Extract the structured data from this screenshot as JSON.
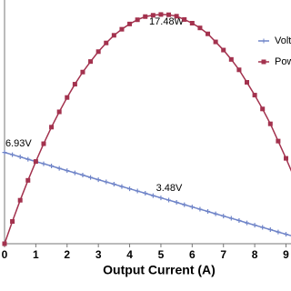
{
  "chart_data": {
    "type": "line",
    "x_label": "Output Current (A)",
    "x": [
      0,
      0.25,
      0.5,
      0.75,
      1,
      1.25,
      1.5,
      1.75,
      2,
      2.25,
      2.5,
      2.75,
      3,
      3.25,
      3.5,
      3.75,
      4,
      4.25,
      4.5,
      4.75,
      5,
      5.25,
      5.5,
      5.75,
      6,
      6.25,
      6.5,
      6.75,
      7,
      7.25,
      7.5,
      7.75,
      8,
      8.25,
      8.5,
      8.75,
      9,
      9.25
    ],
    "series": [
      {
        "name": "Voltage",
        "color": "#6f84c8",
        "values": [
          6.93,
          6.76,
          6.59,
          6.41,
          6.24,
          6.07,
          5.9,
          5.72,
          5.55,
          5.38,
          5.21,
          5.03,
          4.86,
          4.69,
          4.52,
          4.34,
          4.17,
          4.0,
          3.83,
          3.65,
          3.48,
          3.31,
          3.14,
          2.96,
          2.79,
          2.62,
          2.45,
          2.27,
          2.1,
          1.93,
          1.76,
          1.58,
          1.41,
          1.24,
          1.07,
          0.89,
          0.72,
          0.55
        ]
      },
      {
        "name": "Power",
        "color": "#a3324e",
        "values": [
          0,
          1.69,
          3.3,
          4.81,
          6.24,
          7.59,
          8.85,
          10.01,
          11.1,
          12.11,
          13.03,
          13.83,
          14.58,
          15.24,
          15.82,
          16.28,
          16.68,
          17.0,
          17.24,
          17.34,
          17.4,
          17.38,
          17.27,
          17.02,
          16.74,
          16.38,
          15.93,
          15.32,
          14.7,
          13.99,
          13.2,
          12.25,
          11.28,
          10.23,
          9.1,
          7.79,
          6.48,
          5.09
        ]
      }
    ],
    "annotations": [
      "17.48W",
      "6.93V",
      "3.48V"
    ],
    "xlim": [
      0,
      9.16
    ],
    "xticks": [
      0,
      1,
      2,
      3,
      4,
      5,
      6,
      7,
      8,
      9
    ],
    "ylim": [
      0,
      18.5
    ]
  }
}
